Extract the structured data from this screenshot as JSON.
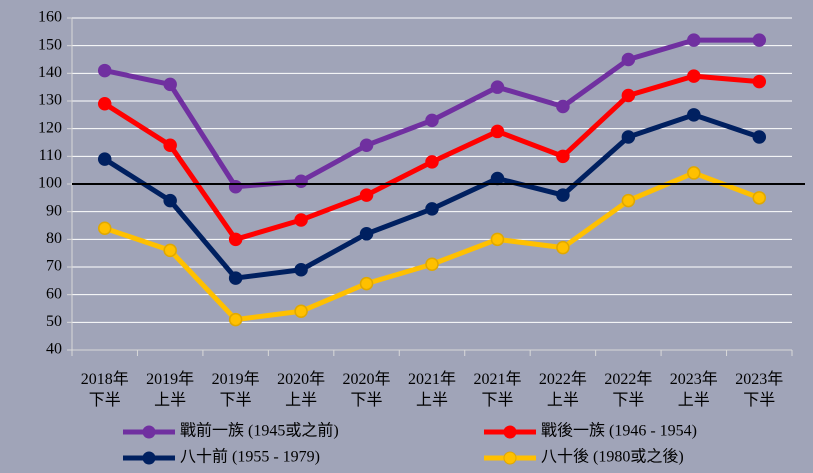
{
  "chart_data": {
    "type": "line",
    "categories": [
      "2018年\n下半",
      "2019年\n上半",
      "2019年\n下半",
      "2020年\n上半",
      "2020年\n下半",
      "2021年\n上半",
      "2021年\n下半",
      "2022年\n上半",
      "2022年\n下半",
      "2023年\n上半",
      "2023年\n下半"
    ],
    "series": [
      {
        "name": "戰前一族 (1945或之前)",
        "color": "#7030a0",
        "values": [
          141,
          136,
          99,
          101,
          114,
          123,
          135,
          128,
          145,
          152,
          152
        ]
      },
      {
        "name": "戰後一族 (1946 - 1954)",
        "color": "#ff0000",
        "values": [
          129,
          114,
          80,
          87,
          96,
          108,
          119,
          110,
          132,
          139,
          137
        ]
      },
      {
        "name": "八十前 (1955 - 1979)",
        "color": "#002060",
        "values": [
          109,
          94,
          66,
          69,
          82,
          91,
          102,
          96,
          117,
          125,
          117
        ]
      },
      {
        "name": "八十後 (1980或之後)",
        "color": "#ffc000",
        "values": [
          84,
          76,
          51,
          54,
          64,
          71,
          80,
          77,
          94,
          104,
          95
        ]
      }
    ],
    "ylim": [
      40,
      160
    ],
    "yticks": [
      40,
      50,
      60,
      70,
      80,
      90,
      100,
      110,
      120,
      130,
      140,
      150,
      160
    ],
    "reference_line": 100,
    "grid": true,
    "legend": "bottom"
  }
}
